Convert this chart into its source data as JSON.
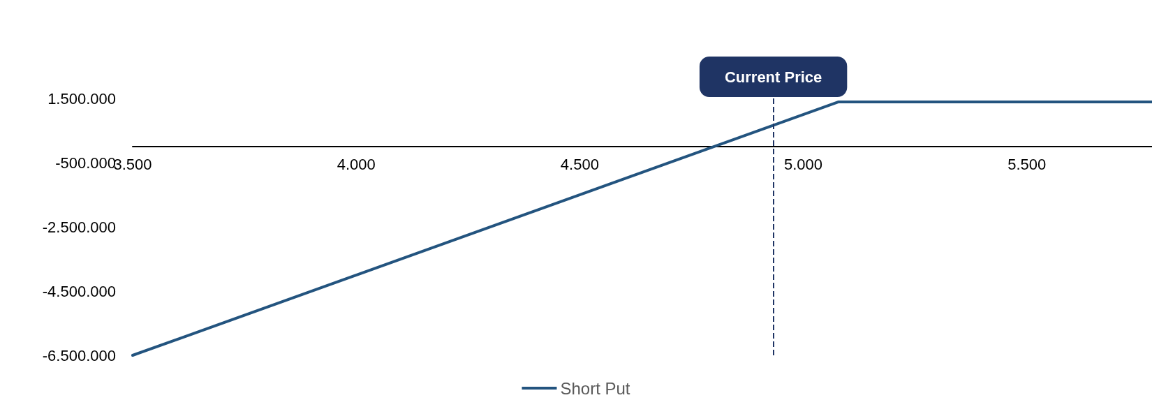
{
  "chart_data": {
    "type": "line",
    "x": [
      3500,
      5078,
      5780
    ],
    "series": [
      {
        "name": "Short Put",
        "color": "#23547f",
        "values": [
          -6500000,
          1390000,
          1390000
        ]
      }
    ],
    "xlim": [
      3500,
      5780
    ],
    "xticks": [
      {
        "value": 3500,
        "label": "3.500"
      },
      {
        "value": 4000,
        "label": "4.000"
      },
      {
        "value": 4500,
        "label": "4.500"
      },
      {
        "value": 5000,
        "label": "5.000"
      },
      {
        "value": 5500,
        "label": "5.500"
      }
    ],
    "ylim": [
      -6500000,
      1500000
    ],
    "yticks": [
      {
        "value": 1500000,
        "label": "1.500.000"
      },
      {
        "value": -500000,
        "label": "-500.000"
      },
      {
        "value": -2500000,
        "label": "-2.500.000"
      },
      {
        "value": -4500000,
        "label": "-4.500.000"
      },
      {
        "value": -6500000,
        "label": "-6.500.000"
      }
    ],
    "ref_lines": [
      {
        "axis": "x",
        "value": 4933,
        "label": "Current Price",
        "color": "#1f3464",
        "line_style": "dashed"
      }
    ],
    "grid": false,
    "legend": "bottom",
    "marker": "none",
    "line_style": "solid"
  }
}
